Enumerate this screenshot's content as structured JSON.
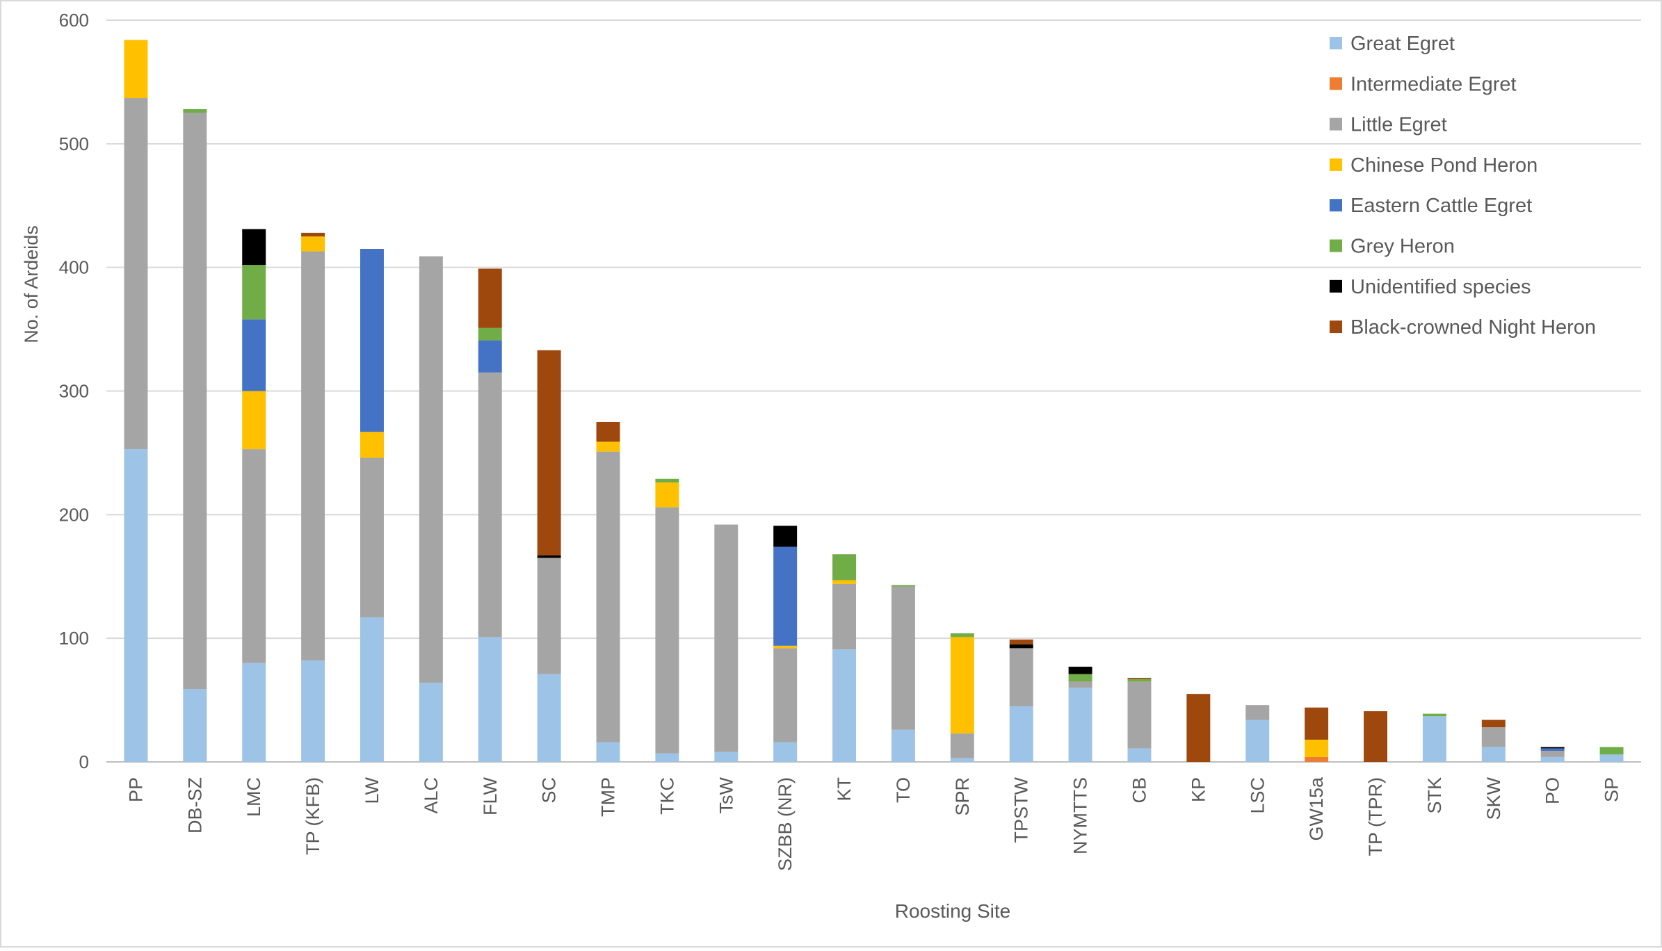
{
  "chart_data": {
    "type": "bar",
    "stacked": true,
    "title": "",
    "xlabel": "Roosting Site",
    "ylabel": "No. of Ardeids",
    "ylim": [
      0,
      600
    ],
    "yticks": [
      0,
      100,
      200,
      300,
      400,
      500,
      600
    ],
    "grid": true,
    "legend_position": "top-right",
    "categories": [
      "PP",
      "DB-SZ",
      "LMC",
      "TP (KFB)",
      "LW",
      "ALC",
      "FLW",
      "SC",
      "TMP",
      "TKC",
      "TsW",
      "SZBB (NR)",
      "KT",
      "TO",
      "SPR",
      "TPSTW",
      "NYMTTS",
      "CB",
      "KP",
      "LSC",
      "GW15a",
      "TP (TPR)",
      "STK",
      "SKW",
      "PO",
      "SP"
    ],
    "series": [
      {
        "name": "Great Egret",
        "color": "#9dc3e6",
        "values": [
          253,
          59,
          80,
          82,
          117,
          64,
          101,
          71,
          16,
          7,
          8,
          16,
          91,
          26,
          3,
          45,
          60,
          11,
          0,
          34,
          0,
          0,
          37,
          12,
          4,
          6
        ]
      },
      {
        "name": "Intermediate Egret",
        "color": "#ed7d31",
        "values": [
          0,
          0,
          0,
          0,
          0,
          0,
          0,
          0,
          0,
          0,
          0,
          0,
          0,
          0,
          0,
          0,
          0,
          0,
          0,
          0,
          4,
          0,
          0,
          0,
          0,
          0
        ]
      },
      {
        "name": "Little Egret",
        "color": "#a5a5a5",
        "values": [
          284,
          466,
          173,
          331,
          129,
          345,
          214,
          94,
          235,
          199,
          184,
          76,
          53,
          116,
          20,
          47,
          5,
          54,
          0,
          12,
          0,
          0,
          0,
          16,
          5,
          0
        ]
      },
      {
        "name": "Chinese Pond Heron",
        "color": "#ffc000",
        "values": [
          47,
          0,
          47,
          12,
          21,
          0,
          0,
          0,
          8,
          20,
          0,
          2,
          3,
          0,
          78,
          0,
          0,
          0,
          0,
          0,
          14,
          0,
          0,
          0,
          0,
          0
        ]
      },
      {
        "name": "Eastern Cattle Egret",
        "color": "#4472c4",
        "values": [
          0,
          0,
          58,
          0,
          148,
          0,
          26,
          0,
          0,
          0,
          0,
          80,
          0,
          0,
          0,
          0,
          0,
          0,
          0,
          0,
          0,
          0,
          0,
          0,
          2,
          0
        ]
      },
      {
        "name": "Grey Heron",
        "color": "#70ad47",
        "values": [
          0,
          3,
          44,
          0,
          0,
          0,
          10,
          0,
          0,
          3,
          0,
          0,
          21,
          1,
          3,
          0,
          6,
          2,
          0,
          0,
          0,
          0,
          2,
          0,
          0,
          6
        ]
      },
      {
        "name": "Unidentified species",
        "color": "#000000",
        "values": [
          0,
          0,
          29,
          0,
          0,
          0,
          0,
          2,
          0,
          0,
          0,
          17,
          0,
          0,
          0,
          3,
          6,
          0,
          0,
          0,
          0,
          0,
          0,
          0,
          1,
          0
        ]
      },
      {
        "name": "Black-crowned Night Heron",
        "color": "#9e480e",
        "values": [
          0,
          0,
          0,
          3,
          0,
          0,
          48,
          166,
          16,
          0,
          0,
          0,
          0,
          0,
          0,
          4,
          0,
          1,
          55,
          0,
          26,
          41,
          0,
          6,
          0,
          0
        ]
      }
    ]
  }
}
